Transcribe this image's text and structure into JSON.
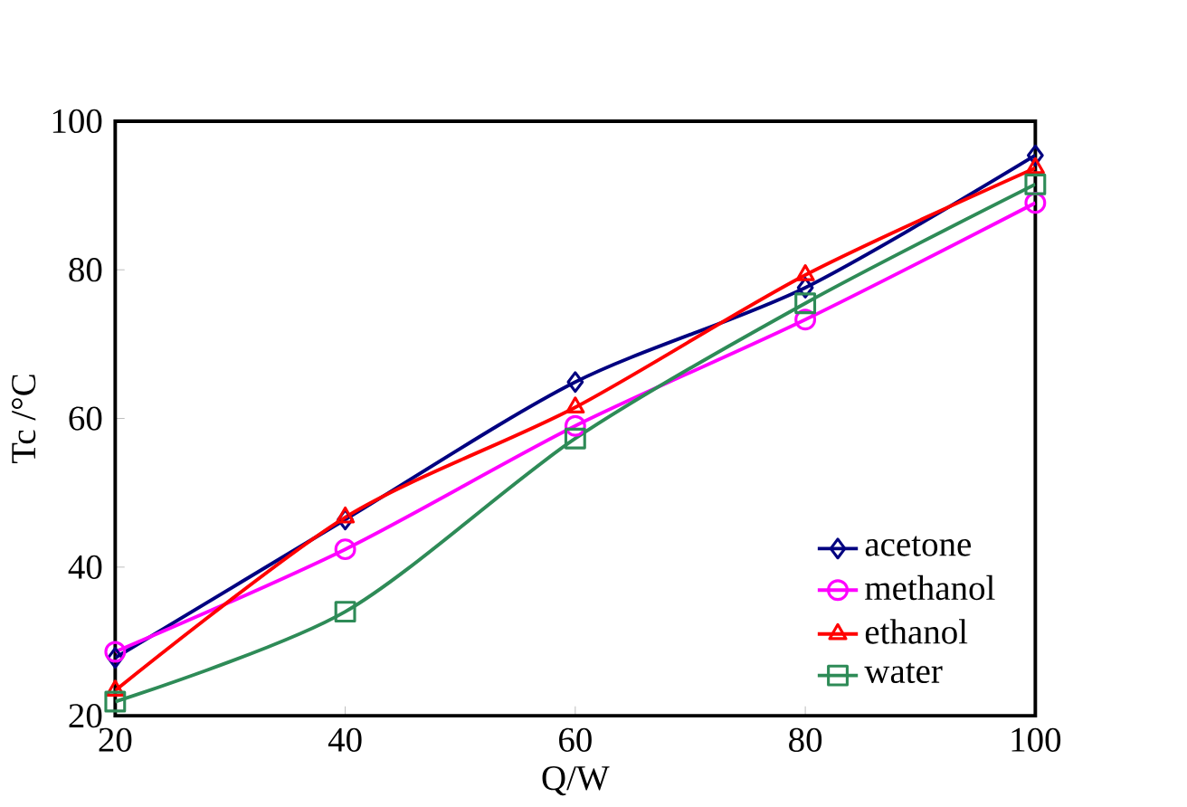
{
  "chart_data": {
    "type": "line",
    "xlabel": "Q/W",
    "ylabel": "Tc /°C",
    "x": [
      20,
      40,
      60,
      80,
      100
    ],
    "series": [
      {
        "name": "acetone",
        "color": "#000080",
        "marker": "diamond",
        "values": [
          27.8,
          46.4,
          64.9,
          77.6,
          95.4
        ]
      },
      {
        "name": "methanol",
        "color": "#ff00ff",
        "marker": "circle",
        "values": [
          28.6,
          42.4,
          59,
          73.3,
          89
        ]
      },
      {
        "name": "ethanol",
        "color": "#ff0000",
        "marker": "triangle",
        "values": [
          23.4,
          46.7,
          61.5,
          79.3,
          93.7
        ]
      },
      {
        "name": "water",
        "color": "#2e8b57",
        "marker": "square",
        "values": [
          21.9,
          34,
          57.3,
          75.5,
          91.5
        ]
      }
    ],
    "xlim": [
      20,
      100
    ],
    "xticks": [
      20,
      40,
      60,
      80,
      100
    ],
    "ylim": [
      20,
      100
    ],
    "yticks": [
      20,
      40,
      60,
      80,
      100
    ],
    "grid": false,
    "legend": "bottom right",
    "line_style": "solid"
  }
}
